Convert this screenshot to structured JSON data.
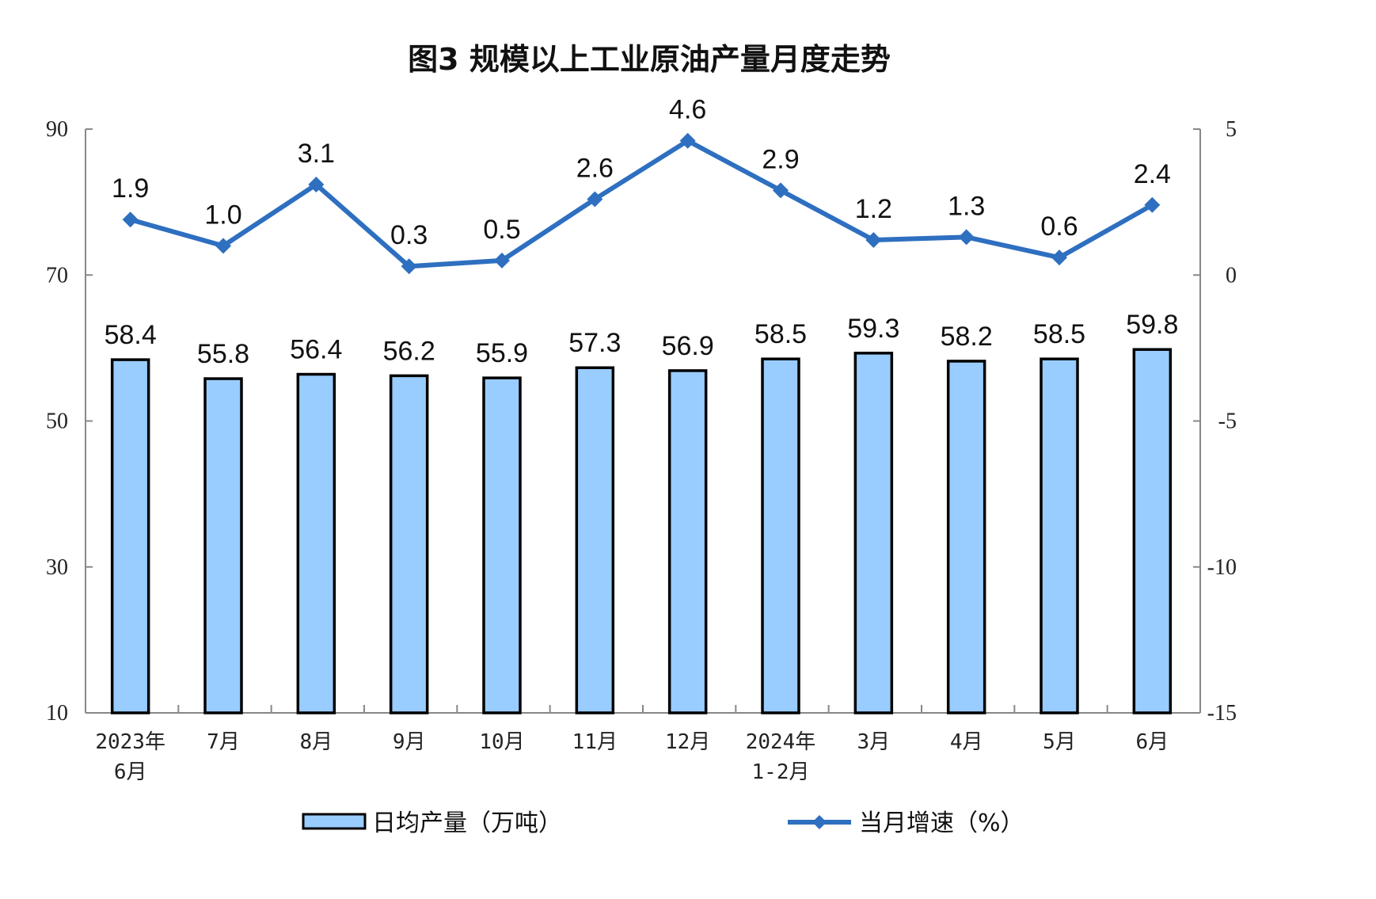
{
  "chart_data": {
    "type": "bar+line",
    "title": "图3  规模以上工业原油产量月度走势",
    "categories": [
      [
        "2023年",
        "6月"
      ],
      [
        "7月"
      ],
      [
        "8月"
      ],
      [
        "9月"
      ],
      [
        "10月"
      ],
      [
        "11月"
      ],
      [
        "12月"
      ],
      [
        "2024年",
        "1-2月"
      ],
      [
        "3月"
      ],
      [
        "4月"
      ],
      [
        "5月"
      ],
      [
        "6月"
      ]
    ],
    "series": [
      {
        "name": "日均产量（万吨）",
        "type": "bar",
        "axis": "left",
        "values": [
          58.4,
          55.8,
          56.4,
          56.2,
          55.9,
          57.3,
          56.9,
          58.5,
          59.3,
          58.2,
          58.5,
          59.8
        ],
        "color": "#99CCFF"
      },
      {
        "name": "当月增速（%）",
        "type": "line",
        "axis": "right",
        "values": [
          1.9,
          1.0,
          3.1,
          0.3,
          0.5,
          2.6,
          4.6,
          2.9,
          1.2,
          1.3,
          0.6,
          2.4
        ],
        "color": "#2E6FC0"
      }
    ],
    "y_left": {
      "range": [
        10,
        90
      ],
      "ticks": [
        "90",
        "70",
        "50",
        "30",
        "10"
      ],
      "tick_values": [
        90,
        70,
        50,
        30,
        10
      ]
    },
    "y_right": {
      "range": [
        -15,
        5
      ],
      "ticks": [
        "5",
        "0",
        "-5",
        "-10",
        "-15"
      ],
      "tick_values": [
        5,
        0,
        -5,
        -10,
        -15
      ]
    },
    "grid": false,
    "legend": "bottom"
  }
}
